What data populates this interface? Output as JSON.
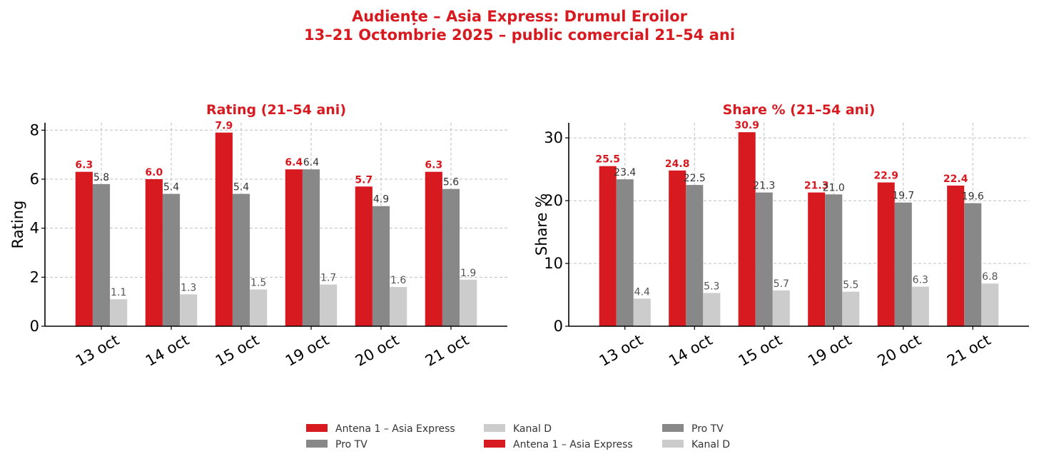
{
  "figure": {
    "title_line1": "Audiențe – Asia Express: Drumul Eroilor",
    "title_line2": "13–21 Octombrie 2025 – public comercial 21–54 ani"
  },
  "colors": {
    "accent": "#d71920",
    "antena": "#d71920",
    "protv": "#888888",
    "kanald": "#cccccc",
    "grid": "#bfbfbf"
  },
  "legend": {
    "entries": [
      {
        "label": "Antena 1 – Asia Express",
        "color": "#d71920"
      },
      {
        "label": "Pro TV",
        "color": "#888888"
      },
      {
        "label": "Kanal D",
        "color": "#cccccc"
      },
      {
        "label": "Antena 1 – Asia Express",
        "color": "#d71920"
      },
      {
        "label": "Pro TV",
        "color": "#888888"
      },
      {
        "label": "Kanal D",
        "color": "#cccccc"
      }
    ]
  },
  "chart_data": [
    {
      "type": "bar",
      "title": "Rating (21–54 ani)",
      "xlabel": "",
      "ylabel": "Rating",
      "ylim": [
        0,
        8.3
      ],
      "yticks": [
        0,
        2,
        4,
        6,
        8
      ],
      "grid": true,
      "categories": [
        "13 oct",
        "14 oct",
        "15 oct",
        "19 oct",
        "20 oct",
        "21 oct"
      ],
      "series": [
        {
          "name": "Antena 1 – Asia Express",
          "color": "#d71920",
          "values": [
            6.3,
            6.0,
            7.9,
            6.4,
            5.7,
            6.3
          ]
        },
        {
          "name": "Pro TV",
          "color": "#888888",
          "values": [
            5.8,
            5.4,
            5.4,
            6.4,
            4.9,
            5.6
          ]
        },
        {
          "name": "Kanal D",
          "color": "#cccccc",
          "values": [
            1.1,
            1.3,
            1.5,
            1.7,
            1.6,
            1.9
          ]
        }
      ]
    },
    {
      "type": "bar",
      "title": "Share % (21–54 ani)",
      "xlabel": "",
      "ylabel": "Share %",
      "ylim": [
        0,
        32.4
      ],
      "yticks": [
        0,
        10,
        20,
        30
      ],
      "grid": true,
      "categories": [
        "13 oct",
        "14 oct",
        "15 oct",
        "19 oct",
        "20 oct",
        "21 oct"
      ],
      "series": [
        {
          "name": "Antena 1 – Asia Express",
          "color": "#d71920",
          "values": [
            25.5,
            24.8,
            30.9,
            21.3,
            22.9,
            22.4
          ]
        },
        {
          "name": "Pro TV",
          "color": "#888888",
          "values": [
            23.4,
            22.5,
            21.3,
            21.0,
            19.7,
            19.6
          ]
        },
        {
          "name": "Kanal D",
          "color": "#cccccc",
          "values": [
            4.4,
            5.3,
            5.7,
            5.5,
            6.3,
            6.8
          ]
        }
      ]
    }
  ]
}
